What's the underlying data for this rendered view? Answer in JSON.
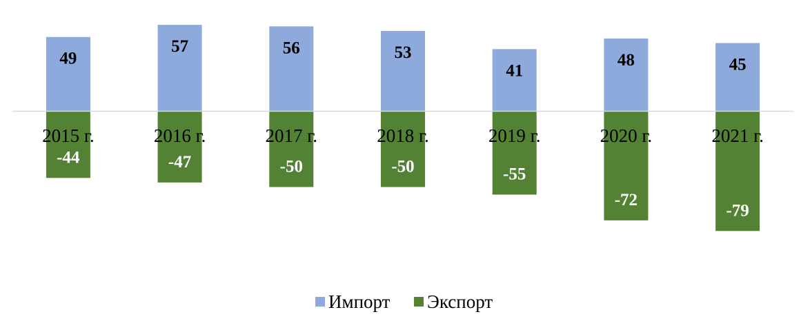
{
  "chart_data": {
    "type": "bar",
    "categories": [
      "2015 г.",
      "2016 г.",
      "2017 г.",
      "2018 г.",
      "2019 г.",
      "2020 г.",
      "2021 г."
    ],
    "series": [
      {
        "name": "Импорт",
        "values": [
          49,
          57,
          56,
          53,
          41,
          48,
          45
        ],
        "color": "#8EA9DB",
        "label_color": "#000000"
      },
      {
        "name": "Экспорт",
        "values": [
          -44,
          -47,
          -50,
          -50,
          -55,
          -72,
          -79
        ],
        "color": "#548235",
        "label_color": "#ffffff"
      }
    ],
    "stacked": true,
    "title": "",
    "xlabel": "",
    "ylabel": "",
    "ylim": [
      -95,
      60
    ],
    "grid": false,
    "legend_position": "bottom",
    "axis_color": "#D9D9D9"
  }
}
